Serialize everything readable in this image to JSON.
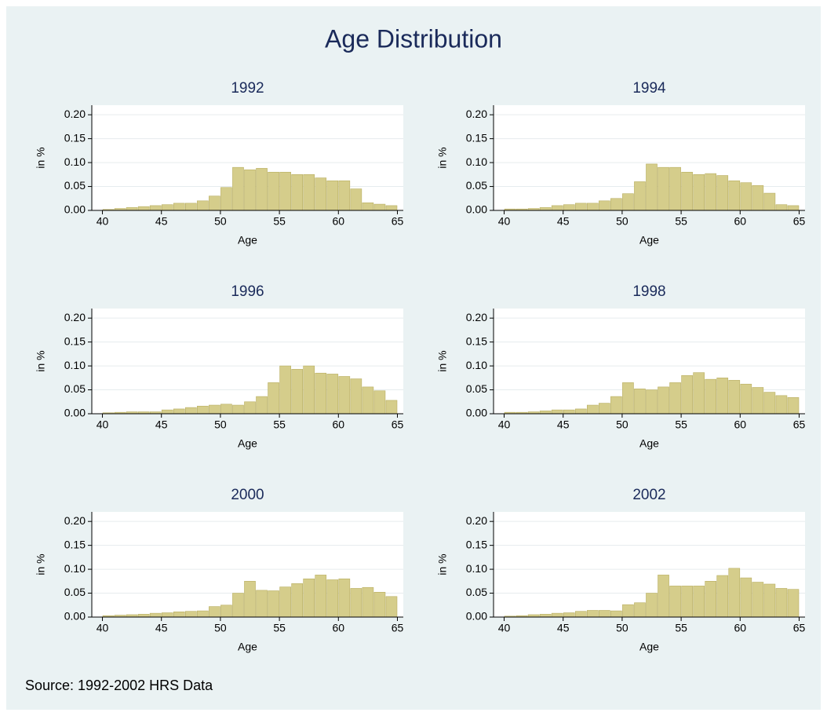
{
  "title": "Age Distribution",
  "note": "Source: 1992-2002 HRS Data",
  "chart_data": [
    {
      "type": "histogram",
      "title": "1992",
      "xlabel": "Age",
      "ylabel": "in %",
      "color": "#d5cd8b",
      "grid": true,
      "bins": [
        40,
        41,
        42,
        43,
        44,
        45,
        46,
        47,
        48,
        49,
        50,
        51,
        52,
        53,
        54,
        55,
        56,
        57,
        58,
        59,
        60,
        61,
        62,
        63,
        64,
        65
      ],
      "values": [
        0.002,
        0.004,
        0.006,
        0.008,
        0.01,
        0.012,
        0.015,
        0.015,
        0.02,
        0.03,
        0.048,
        0.09,
        0.085,
        0.088,
        0.08,
        0.08,
        0.075,
        0.075,
        0.068,
        0.062,
        0.062,
        0.045,
        0.016,
        0.013,
        0.01
      ],
      "xlim": [
        39.1,
        65.5
      ],
      "xticks": [
        40,
        45,
        50,
        55,
        60,
        65
      ],
      "ylim": [
        0,
        0.22
      ],
      "yticks": [
        {
          "value": 0,
          "label": "0.00"
        },
        {
          "value": 0.05,
          "label": "0.05"
        },
        {
          "value": 0.1,
          "label": "0.10"
        },
        {
          "value": 0.15,
          "label": "0.15"
        },
        {
          "value": 0.2,
          "label": "0.20"
        }
      ]
    },
    {
      "type": "histogram",
      "title": "1994",
      "xlabel": "Age",
      "ylabel": "in %",
      "color": "#d5cd8b",
      "grid": true,
      "bins": [
        40,
        41,
        42,
        43,
        44,
        45,
        46,
        47,
        48,
        49,
        50,
        51,
        52,
        53,
        54,
        55,
        56,
        57,
        58,
        59,
        60,
        61,
        62,
        63,
        64,
        65
      ],
      "values": [
        0.003,
        0.003,
        0.004,
        0.006,
        0.01,
        0.012,
        0.015,
        0.015,
        0.02,
        0.025,
        0.035,
        0.06,
        0.097,
        0.09,
        0.09,
        0.08,
        0.075,
        0.077,
        0.073,
        0.062,
        0.058,
        0.052,
        0.036,
        0.012,
        0.01
      ],
      "xlim": [
        39.1,
        65.5
      ],
      "xticks": [
        40,
        45,
        50,
        55,
        60,
        65
      ],
      "ylim": [
        0,
        0.22
      ],
      "yticks": [
        {
          "value": 0,
          "label": "0.00"
        },
        {
          "value": 0.05,
          "label": "0.05"
        },
        {
          "value": 0.1,
          "label": "0.10"
        },
        {
          "value": 0.15,
          "label": "0.15"
        },
        {
          "value": 0.2,
          "label": "0.20"
        }
      ]
    },
    {
      "type": "histogram",
      "title": "1996",
      "xlabel": "Age",
      "ylabel": "in %",
      "color": "#d5cd8b",
      "grid": true,
      "bins": [
        40,
        41,
        42,
        43,
        44,
        45,
        46,
        47,
        48,
        49,
        50,
        51,
        52,
        53,
        54,
        55,
        56,
        57,
        58,
        59,
        60,
        61,
        62,
        63,
        64,
        65
      ],
      "values": [
        0.002,
        0.003,
        0.004,
        0.004,
        0.004,
        0.008,
        0.01,
        0.013,
        0.016,
        0.018,
        0.02,
        0.018,
        0.025,
        0.036,
        0.065,
        0.1,
        0.093,
        0.1,
        0.085,
        0.083,
        0.078,
        0.073,
        0.056,
        0.048,
        0.028
      ],
      "xlim": [
        39.1,
        65.5
      ],
      "xticks": [
        40,
        45,
        50,
        55,
        60,
        65
      ],
      "ylim": [
        0,
        0.22
      ],
      "yticks": [
        {
          "value": 0,
          "label": "0.00"
        },
        {
          "value": 0.05,
          "label": "0.05"
        },
        {
          "value": 0.1,
          "label": "0.10"
        },
        {
          "value": 0.15,
          "label": "0.15"
        },
        {
          "value": 0.2,
          "label": "0.20"
        }
      ]
    },
    {
      "type": "histogram",
      "title": "1998",
      "xlabel": "Age",
      "ylabel": "in %",
      "color": "#d5cd8b",
      "grid": true,
      "bins": [
        40,
        41,
        42,
        43,
        44,
        45,
        46,
        47,
        48,
        49,
        50,
        51,
        52,
        53,
        54,
        55,
        56,
        57,
        58,
        59,
        60,
        61,
        62,
        63,
        64,
        65
      ],
      "values": [
        0.003,
        0.003,
        0.004,
        0.006,
        0.008,
        0.008,
        0.01,
        0.018,
        0.022,
        0.036,
        0.065,
        0.052,
        0.05,
        0.056,
        0.065,
        0.08,
        0.086,
        0.072,
        0.075,
        0.07,
        0.062,
        0.055,
        0.045,
        0.038,
        0.034
      ],
      "xlim": [
        39.1,
        65.5
      ],
      "xticks": [
        40,
        45,
        50,
        55,
        60,
        65
      ],
      "ylim": [
        0,
        0.22
      ],
      "yticks": [
        {
          "value": 0,
          "label": "0.00"
        },
        {
          "value": 0.05,
          "label": "0.05"
        },
        {
          "value": 0.1,
          "label": "0.10"
        },
        {
          "value": 0.15,
          "label": "0.15"
        },
        {
          "value": 0.2,
          "label": "0.20"
        }
      ]
    },
    {
      "type": "histogram",
      "title": "2000",
      "xlabel": "Age",
      "ylabel": "in %",
      "color": "#d5cd8b",
      "grid": true,
      "bins": [
        40,
        41,
        42,
        43,
        44,
        45,
        46,
        47,
        48,
        49,
        50,
        51,
        52,
        53,
        54,
        55,
        56,
        57,
        58,
        59,
        60,
        61,
        62,
        63,
        64,
        65
      ],
      "values": [
        0.003,
        0.004,
        0.005,
        0.006,
        0.008,
        0.009,
        0.011,
        0.012,
        0.013,
        0.022,
        0.025,
        0.05,
        0.075,
        0.056,
        0.055,
        0.063,
        0.07,
        0.08,
        0.088,
        0.078,
        0.08,
        0.06,
        0.062,
        0.052,
        0.043
      ],
      "xlim": [
        39.1,
        65.5
      ],
      "xticks": [
        40,
        45,
        50,
        55,
        60,
        65
      ],
      "ylim": [
        0,
        0.22
      ],
      "yticks": [
        {
          "value": 0,
          "label": "0.00"
        },
        {
          "value": 0.05,
          "label": "0.05"
        },
        {
          "value": 0.1,
          "label": "0.10"
        },
        {
          "value": 0.15,
          "label": "0.15"
        },
        {
          "value": 0.2,
          "label": "0.20"
        }
      ]
    },
    {
      "type": "histogram",
      "title": "2002",
      "xlabel": "Age",
      "ylabel": "in %",
      "color": "#d5cd8b",
      "grid": true,
      "bins": [
        40,
        41,
        42,
        43,
        44,
        45,
        46,
        47,
        48,
        49,
        50,
        51,
        52,
        53,
        54,
        55,
        56,
        57,
        58,
        59,
        60,
        61,
        62,
        63,
        64,
        65
      ],
      "values": [
        0.002,
        0.003,
        0.005,
        0.006,
        0.008,
        0.009,
        0.012,
        0.014,
        0.014,
        0.013,
        0.026,
        0.03,
        0.05,
        0.088,
        0.065,
        0.065,
        0.065,
        0.075,
        0.087,
        0.102,
        0.082,
        0.073,
        0.069,
        0.06,
        0.058
      ],
      "xlim": [
        39.1,
        65.5
      ],
      "xticks": [
        40,
        45,
        50,
        55,
        60,
        65
      ],
      "ylim": [
        0,
        0.22
      ],
      "yticks": [
        {
          "value": 0,
          "label": "0.00"
        },
        {
          "value": 0.05,
          "label": "0.05"
        },
        {
          "value": 0.1,
          "label": "0.10"
        },
        {
          "value": 0.15,
          "label": "0.15"
        },
        {
          "value": 0.2,
          "label": "0.20"
        }
      ]
    }
  ]
}
